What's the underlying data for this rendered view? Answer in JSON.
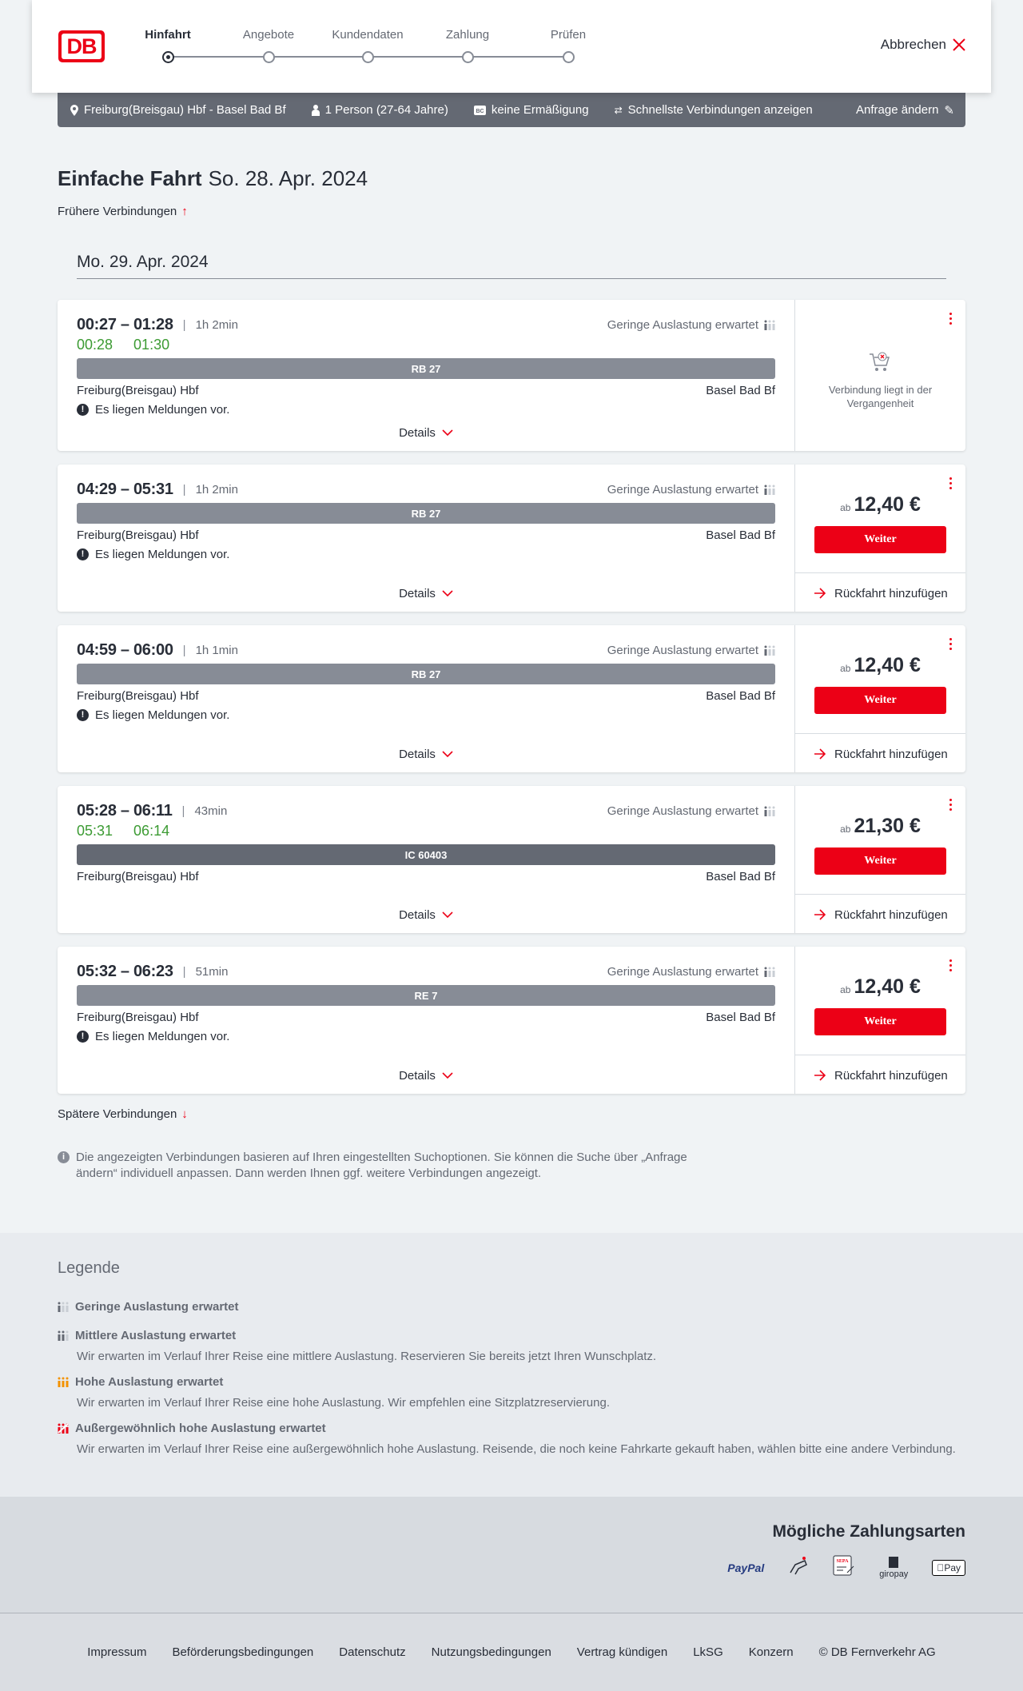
{
  "header": {
    "logo": "DB",
    "cancel_label": "Abbrechen",
    "steps": [
      {
        "label": "Hinfahrt",
        "active": true
      },
      {
        "label": "Angebote"
      },
      {
        "label": "Kundendaten"
      },
      {
        "label": "Zahlung"
      },
      {
        "label": "Prüfen"
      }
    ]
  },
  "summary": {
    "route": "Freiburg(Breisgau) Hbf - Basel Bad Bf",
    "passengers": "1 Person (27-64 Jahre)",
    "discount": "keine Ermäßigung",
    "fastest": "Schnellste Verbindungen anzeigen",
    "change": "Anfrage ändern"
  },
  "page": {
    "title": "Einfache Fahrt",
    "date": "So. 28. Apr. 2024",
    "earlier": "Frühere Verbindungen",
    "day_heading": "Mo. 29. Apr. 2024",
    "later": "Spätere Verbindungen",
    "info": "Die angezeigten Verbindungen basieren auf Ihren eingestellten Suchoptionen. Sie können die Suche über „Anfrage ändern“ individuell anpassen. Dann werden Ihnen ggf. weitere Verbindungen angezeigt."
  },
  "common": {
    "occupancy": "Geringe Auslastung erwartet",
    "from": "Freiburg(Breisgau) Hbf",
    "to": "Basel Bad Bf",
    "message": "Es liegen Meldungen vor.",
    "details": "Details",
    "ab": "ab",
    "weiter": "Weiter",
    "return": "Rückfahrt hinzufügen",
    "past": "Verbindung liegt in der Vergangenheit"
  },
  "connections": [
    {
      "times": "00:27 – 01:28",
      "duration": "1h 2min",
      "rt_dep": "00:28",
      "rt_arr": "01:30",
      "train": "RB 27",
      "message": true,
      "price": null
    },
    {
      "times": "04:29 – 05:31",
      "duration": "1h 2min",
      "train": "RB 27",
      "message": true,
      "price": "12,40 €"
    },
    {
      "times": "04:59 – 06:00",
      "duration": "1h 1min",
      "train": "RB 27",
      "message": true,
      "price": "12,40 €"
    },
    {
      "times": "05:28 – 06:11",
      "duration": "43min",
      "rt_dep": "05:31",
      "rt_arr": "06:14",
      "train": "IC 60403",
      "message": false,
      "price": "21,30 €"
    },
    {
      "times": "05:32 – 06:23",
      "duration": "51min",
      "train": "RE 7",
      "message": true,
      "price": "12,40 €"
    }
  ],
  "legend": {
    "title": "Legende",
    "items": [
      {
        "label": "Geringe Auslastung erwartet",
        "desc": "",
        "color": "#646973"
      },
      {
        "label": "Mittlere Auslastung erwartet",
        "desc": "Wir erwarten im Verlauf Ihrer Reise eine mittlere Auslastung. Reservieren Sie bereits jetzt Ihren Wunschplatz.",
        "color": "#646973"
      },
      {
        "label": "Hohe Auslastung erwartet",
        "desc": "Wir erwarten im Verlauf Ihrer Reise eine hohe Auslastung. Wir empfehlen eine Sitzplatzreservierung.",
        "color": "#f39200"
      },
      {
        "label": "Außergewöhnlich hohe Auslastung erwartet",
        "desc": "Wir erwarten im Verlauf Ihrer Reise eine außergewöhnlich hohe Auslastung. Reisende, die noch keine Fahrkarte gekauft haben, wählen bitte eine andere Verbindung.",
        "color": "#ec0016"
      }
    ]
  },
  "payment": {
    "title": "Mögliche Zahlungsarten",
    "methods": [
      "PayPal",
      "Kreditkarte",
      "SEPA",
      "giropay",
      "Apple Pay"
    ]
  },
  "footer": {
    "links": [
      "Impressum",
      "Beförderungsbedingungen",
      "Datenschutz",
      "Nutzungsbedingungen",
      "Vertrag kündigen",
      "LkSG",
      "Konzern",
      "© DB Fernverkehr AG"
    ]
  },
  "colors": {
    "accent": "#ec0016",
    "realtime": "#3c9b33",
    "bar": "#878c96"
  }
}
